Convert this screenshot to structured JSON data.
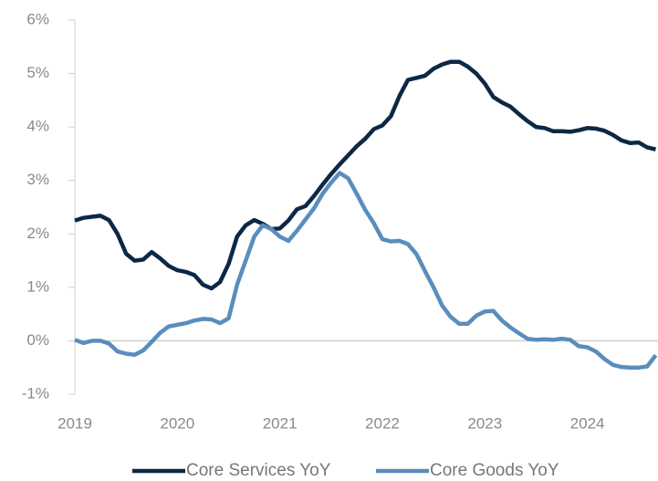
{
  "chart_data": {
    "type": "line",
    "categories": [
      "2019",
      null,
      null,
      null,
      null,
      null,
      null,
      null,
      null,
      null,
      null,
      null,
      "2020",
      null,
      null,
      null,
      null,
      null,
      null,
      null,
      null,
      null,
      null,
      null,
      "2021",
      null,
      null,
      null,
      null,
      null,
      null,
      null,
      null,
      null,
      null,
      null,
      "2022",
      null,
      null,
      null,
      null,
      null,
      null,
      null,
      null,
      null,
      null,
      null,
      "2023",
      null,
      null,
      null,
      null,
      null,
      null,
      null,
      null,
      null,
      null,
      null,
      "2024",
      null,
      null,
      null,
      null,
      null,
      null,
      null,
      null
    ],
    "series": [
      {
        "name": "Core Services YoY",
        "color": "#0c2846",
        "values": [
          2.25,
          2.3,
          2.32,
          2.34,
          2.26,
          2.0,
          1.63,
          1.5,
          1.52,
          1.66,
          1.54,
          1.4,
          1.32,
          1.29,
          1.23,
          1.05,
          0.98,
          1.1,
          1.44,
          1.95,
          2.16,
          2.26,
          2.19,
          2.09,
          2.1,
          2.25,
          2.46,
          2.52,
          2.71,
          2.92,
          3.12,
          3.3,
          3.47,
          3.64,
          3.78,
          3.96,
          4.03,
          4.2,
          4.58,
          4.88,
          4.92,
          4.96,
          5.09,
          5.17,
          5.22,
          5.22,
          5.13,
          5.0,
          4.81,
          4.56,
          4.46,
          4.38,
          4.24,
          4.11,
          4.0,
          3.98,
          3.92,
          3.92,
          3.91,
          3.94,
          3.98,
          3.97,
          3.93,
          3.85,
          3.75,
          3.7,
          3.71,
          3.62,
          3.58
        ]
      },
      {
        "name": "Core Goods YoY",
        "color": "#5a8dbd",
        "values": [
          0.02,
          -0.04,
          0.0,
          0.0,
          -0.05,
          -0.2,
          -0.24,
          -0.26,
          -0.18,
          -0.02,
          0.15,
          0.27,
          0.3,
          0.33,
          0.38,
          0.41,
          0.4,
          0.33,
          0.42,
          1.05,
          1.5,
          1.95,
          2.16,
          2.09,
          1.95,
          1.87,
          2.06,
          2.27,
          2.48,
          2.75,
          2.96,
          3.14,
          3.04,
          2.75,
          2.45,
          2.2,
          1.9,
          1.86,
          1.87,
          1.81,
          1.62,
          1.3,
          1.0,
          0.66,
          0.45,
          0.32,
          0.32,
          0.47,
          0.55,
          0.56,
          0.38,
          0.25,
          0.14,
          0.04,
          0.02,
          0.03,
          0.02,
          0.04,
          0.02,
          -0.1,
          -0.12,
          -0.2,
          -0.34,
          -0.45,
          -0.49,
          -0.5,
          -0.5,
          -0.48,
          -0.27
        ]
      }
    ],
    "ylim": [
      -1,
      6
    ],
    "yticks": [
      {
        "value": -1,
        "label": "-1%"
      },
      {
        "value": 0,
        "label": "0%"
      },
      {
        "value": 1,
        "label": "1%"
      },
      {
        "value": 2,
        "label": "2%"
      },
      {
        "value": 3,
        "label": "3%"
      },
      {
        "value": 4,
        "label": "4%"
      },
      {
        "value": 5,
        "label": "5%"
      },
      {
        "value": 6,
        "label": "6%"
      }
    ],
    "zero_line": true,
    "legend": "bottom"
  }
}
